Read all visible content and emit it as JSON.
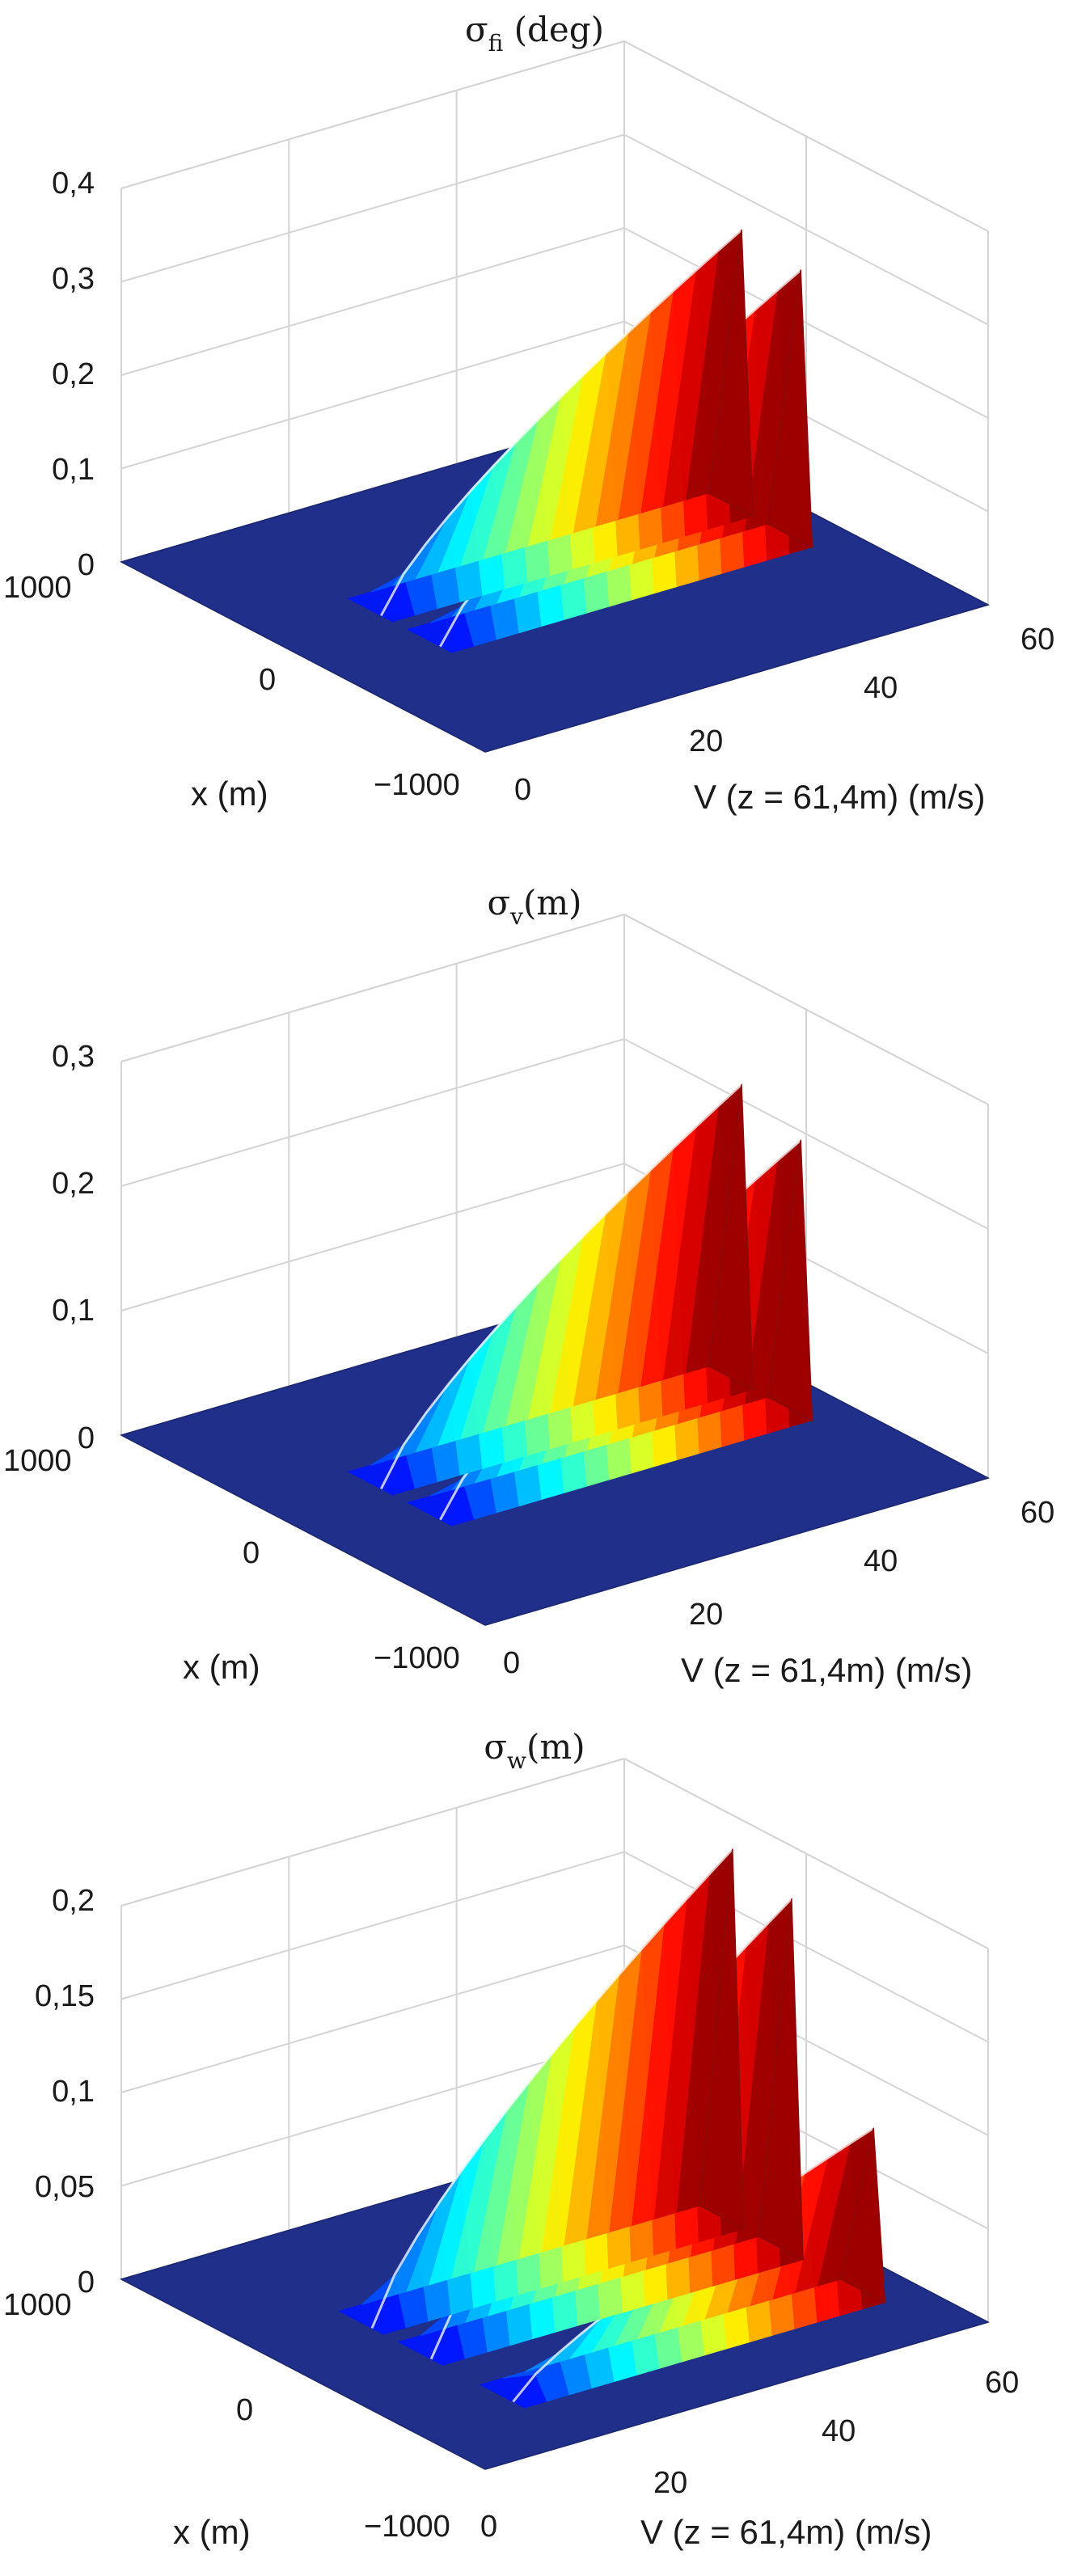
{
  "chart_data": [
    {
      "type": "surface",
      "title": {
        "symbol": "σ",
        "subscript": "fi",
        "suffix": " (deg)"
      },
      "xlabel": "x (m)",
      "ylabel": "V (z = 61,4m) (m/s)",
      "x_ticks": [
        "1000",
        "0",
        "−1000"
      ],
      "v_ticks": [
        "0",
        "20",
        "40",
        "60"
      ],
      "z_ticks": [
        "0",
        "0,1",
        "0,2",
        "0,3",
        "0,4"
      ],
      "xlim": [
        -1000,
        1000
      ],
      "vlim": [
        0,
        60
      ],
      "zlim": [
        0,
        0.4
      ],
      "colormap": "jet",
      "grid": true,
      "ridges": [
        {
          "x_center": 125,
          "peak_v": 55,
          "peak_value": 0.3
        },
        {
          "x_center": -200,
          "peak_v": 55,
          "peak_value": 0.29
        }
      ]
    },
    {
      "type": "surface",
      "title": {
        "symbol": "σ",
        "subscript": "v",
        "suffix": "(m)"
      },
      "xlabel": "x (m)",
      "ylabel": "V (z = 61,4m) (m/s)",
      "x_ticks": [
        "1000",
        "0",
        "−1000"
      ],
      "v_ticks": [
        "0",
        "20",
        "40",
        "60"
      ],
      "z_ticks": [
        "0",
        "0,1",
        "0,2",
        "0,3"
      ],
      "xlim": [
        -1000,
        1000
      ],
      "vlim": [
        0,
        60
      ],
      "zlim": [
        0,
        0.3
      ],
      "colormap": "jet",
      "grid": true,
      "ridges": [
        {
          "x_center": 125,
          "peak_v": 55,
          "peak_value": 0.24
        },
        {
          "x_center": -200,
          "peak_v": 55,
          "peak_value": 0.22
        }
      ]
    },
    {
      "type": "surface",
      "title": {
        "symbol": "σ",
        "subscript": "w",
        "suffix": "(m)"
      },
      "xlabel": "x (m)",
      "ylabel": "V (z = 61,4m) (m/s)",
      "x_ticks": [
        "1000",
        "0",
        "−1000"
      ],
      "v_ticks": [
        "0",
        "20",
        "40",
        "60"
      ],
      "z_ticks": [
        "0",
        "0,05",
        "0,1",
        "0,15",
        "0,2"
      ],
      "xlim": [
        -1000,
        1000
      ],
      "vlim": [
        0,
        60
      ],
      "zlim": [
        0,
        0.2
      ],
      "colormap": "jet",
      "grid": true,
      "ridges": [
        {
          "x_center": 175,
          "peak_v": 55,
          "peak_value": 0.2
        },
        {
          "x_center": -150,
          "peak_v": 55,
          "peak_value": 0.19
        },
        {
          "x_center": -600,
          "peak_v": 55,
          "peak_value": 0.09
        }
      ]
    }
  ]
}
